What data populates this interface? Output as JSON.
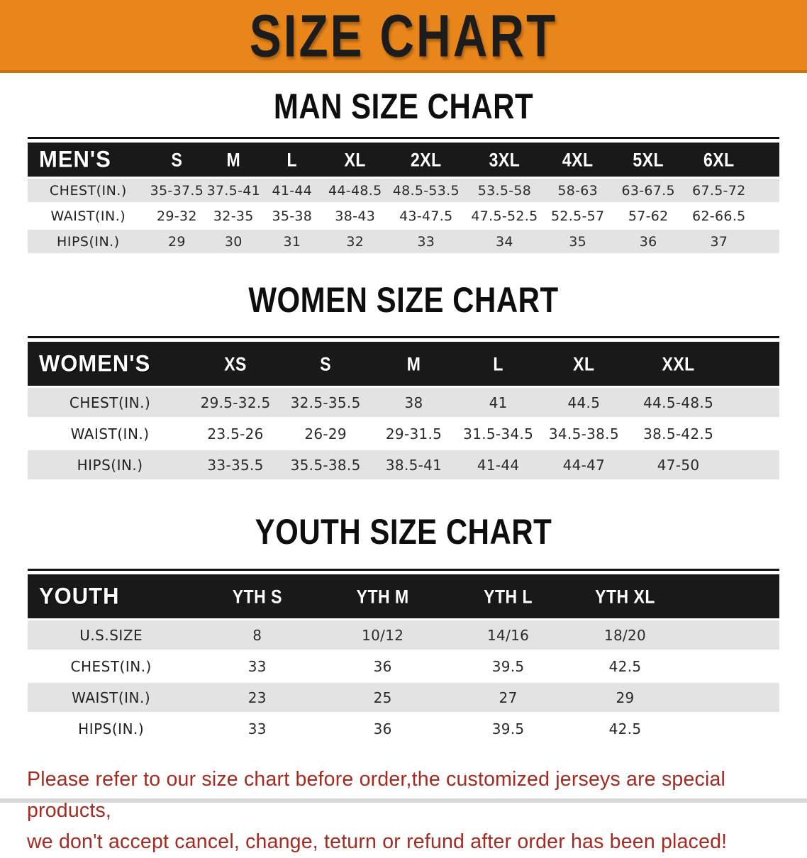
{
  "banner": {
    "title": "SIZE CHART"
  },
  "sections": [
    {
      "title": "MAN SIZE CHART",
      "table": {
        "header": [
          "MEN'S",
          "S",
          "M",
          "L",
          "XL",
          "2XL",
          "3XL",
          "4XL",
          "5XL",
          "6XL"
        ],
        "rows": [
          [
            "CHEST(IN.)",
            "35-37.5",
            "37.5-41",
            "41-44",
            "44-48.5",
            "48.5-53.5",
            "53.5-58",
            "58-63",
            "63-67.5",
            "67.5-72"
          ],
          [
            "WAIST(IN.)",
            "29-32",
            "32-35",
            "35-38",
            "38-43",
            "43-47.5",
            "47.5-52.5",
            "52.5-57",
            "57-62",
            "62-66.5"
          ],
          [
            "HIPS(IN.)",
            "29",
            "30",
            "31",
            "32",
            "33",
            "34",
            "35",
            "36",
            "37"
          ]
        ]
      }
    },
    {
      "title": "WOMEN SIZE CHART",
      "table": {
        "header": [
          "WOMEN'S",
          "XS",
          "S",
          "M",
          "L",
          "XL",
          "XXL"
        ],
        "rows": [
          [
            "CHEST(IN.)",
            "29.5-32.5",
            "32.5-35.5",
            "38",
            "41",
            "44.5",
            "44.5-48.5"
          ],
          [
            "WAIST(IN.)",
            "23.5-26",
            "26-29",
            "29-31.5",
            "31.5-34.5",
            "34.5-38.5",
            "38.5-42.5"
          ],
          [
            "HIPS(IN.)",
            "33-35.5",
            "35.5-38.5",
            "38.5-41",
            "41-44",
            "44-47",
            "47-50"
          ]
        ]
      }
    },
    {
      "title": "YOUTH SIZE CHART",
      "table": {
        "header": [
          "YOUTH",
          "YTH S",
          "YTH M",
          "YTH L",
          "YTH XL"
        ],
        "rows": [
          [
            "U.S.SIZE",
            "8",
            "10/12",
            "14/16",
            "18/20"
          ],
          [
            "CHEST(IN.)",
            "33",
            "36",
            "39.5",
            "42.5"
          ],
          [
            "WAIST(IN.)",
            "23",
            "25",
            "27",
            "29"
          ],
          [
            "HIPS(IN.)",
            "33",
            "36",
            "39.5",
            "42.5"
          ]
        ]
      }
    }
  ],
  "disclaimer": {
    "line1": "Please refer to our size chart before order,the customized jerseys are special products,",
    "line2": "we don't accept cancel, change, teturn or refund after order has been placed!"
  },
  "colors": {
    "banner-orange": "#E8861B",
    "banner-edge": "#C9700F",
    "header-black": "#191919",
    "row-gray": "#E3E3E3",
    "disclaimer-red": "#A62A20"
  }
}
